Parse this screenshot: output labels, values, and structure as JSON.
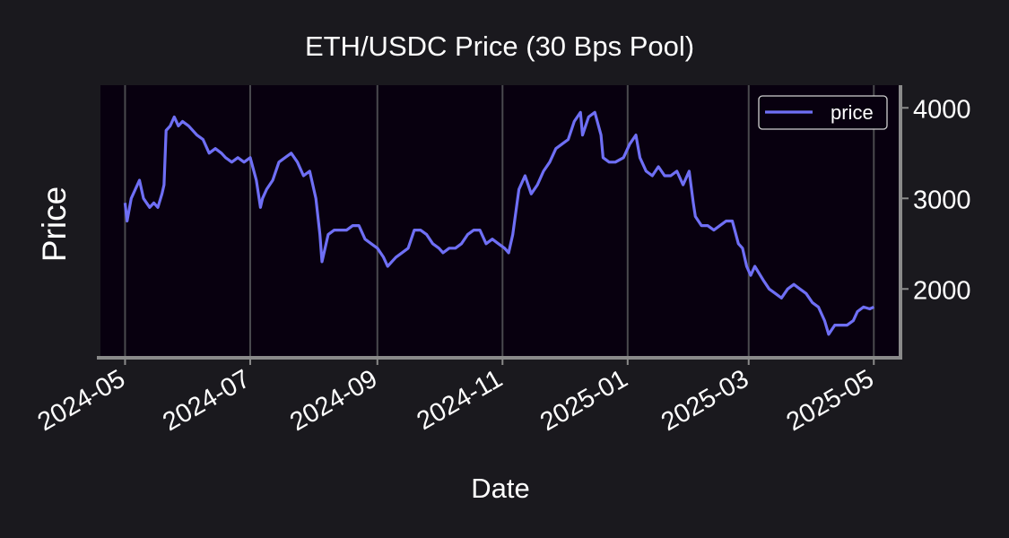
{
  "chart_data": {
    "type": "line",
    "title": "ETH/USDC Price (30 Bps Pool)",
    "xlabel": "Date",
    "ylabel": "Price",
    "xlim": [
      "2024-04-19",
      "2025-05-14"
    ],
    "ylim": [
      1250,
      4250
    ],
    "x_ticks": [
      "2024-05",
      "2024-07",
      "2024-09",
      "2024-11",
      "2025-01",
      "2025-03",
      "2025-05"
    ],
    "y_ticks": [
      2000,
      3000,
      4000
    ],
    "grid": "vertical",
    "legend": "top-right",
    "colors": {
      "line": "#6f6ff5",
      "plot_background": "#08000f",
      "figure_background": "#1a191e",
      "grid": "#4a4a4e",
      "axis_spine": "#8a8a8a"
    },
    "series": [
      {
        "name": "price",
        "x": [
          "2024-05-01",
          "2024-05-02",
          "2024-05-04",
          "2024-05-06",
          "2024-05-08",
          "2024-05-10",
          "2024-05-13",
          "2024-05-15",
          "2024-05-17",
          "2024-05-19",
          "2024-05-20",
          "2024-05-21",
          "2024-05-23",
          "2024-05-25",
          "2024-05-27",
          "2024-05-29",
          "2024-06-01",
          "2024-06-05",
          "2024-06-08",
          "2024-06-11",
          "2024-06-14",
          "2024-06-17",
          "2024-06-19",
          "2024-06-22",
          "2024-06-25",
          "2024-06-28",
          "2024-07-01",
          "2024-07-04",
          "2024-07-06",
          "2024-07-07",
          "2024-07-09",
          "2024-07-12",
          "2024-07-15",
          "2024-07-18",
          "2024-07-21",
          "2024-07-24",
          "2024-07-27",
          "2024-07-30",
          "2024-08-02",
          "2024-08-04",
          "2024-08-05",
          "2024-08-06",
          "2024-08-08",
          "2024-08-11",
          "2024-08-14",
          "2024-08-17",
          "2024-08-20",
          "2024-08-23",
          "2024-08-26",
          "2024-08-29",
          "2024-09-01",
          "2024-09-04",
          "2024-09-06",
          "2024-09-08",
          "2024-09-10",
          "2024-09-13",
          "2024-09-16",
          "2024-09-19",
          "2024-09-22",
          "2024-09-25",
          "2024-09-28",
          "2024-10-01",
          "2024-10-03",
          "2024-10-06",
          "2024-10-09",
          "2024-10-12",
          "2024-10-15",
          "2024-10-18",
          "2024-10-21",
          "2024-10-24",
          "2024-10-27",
          "2024-10-30",
          "2024-11-02",
          "2024-11-04",
          "2024-11-06",
          "2024-11-09",
          "2024-11-12",
          "2024-11-15",
          "2024-11-18",
          "2024-11-21",
          "2024-11-24",
          "2024-11-27",
          "2024-11-30",
          "2024-12-03",
          "2024-12-06",
          "2024-12-09",
          "2024-12-10",
          "2024-12-13",
          "2024-12-16",
          "2024-12-19",
          "2024-12-20",
          "2024-12-23",
          "2024-12-26",
          "2024-12-30",
          "2025-01-02",
          "2025-01-05",
          "2025-01-07",
          "2025-01-10",
          "2025-01-13",
          "2025-01-16",
          "2025-01-19",
          "2025-01-22",
          "2025-01-25",
          "2025-01-28",
          "2025-01-31",
          "2025-02-02",
          "2025-02-03",
          "2025-02-06",
          "2025-02-09",
          "2025-02-12",
          "2025-02-15",
          "2025-02-18",
          "2025-02-21",
          "2025-02-24",
          "2025-02-26",
          "2025-02-28",
          "2025-03-02",
          "2025-03-04",
          "2025-03-08",
          "2025-03-11",
          "2025-03-14",
          "2025-03-17",
          "2025-03-20",
          "2025-03-23",
          "2025-03-26",
          "2025-03-29",
          "2025-04-01",
          "2025-04-04",
          "2025-04-07",
          "2025-04-09",
          "2025-04-12",
          "2025-04-15",
          "2025-04-18",
          "2025-04-21",
          "2025-04-23",
          "2025-04-26",
          "2025-04-29",
          "2025-05-01"
        ],
        "y": [
          2950,
          2750,
          3000,
          3100,
          3200,
          3000,
          2900,
          2950,
          2900,
          3050,
          3150,
          3750,
          3800,
          3900,
          3800,
          3850,
          3800,
          3700,
          3650,
          3500,
          3550,
          3500,
          3450,
          3400,
          3450,
          3400,
          3450,
          3200,
          2900,
          3000,
          3100,
          3200,
          3400,
          3450,
          3500,
          3400,
          3250,
          3300,
          3000,
          2600,
          2300,
          2400,
          2600,
          2650,
          2650,
          2650,
          2700,
          2700,
          2550,
          2500,
          2450,
          2350,
          2250,
          2300,
          2350,
          2400,
          2450,
          2650,
          2650,
          2600,
          2500,
          2450,
          2400,
          2450,
          2450,
          2500,
          2600,
          2650,
          2650,
          2500,
          2550,
          2500,
          2450,
          2400,
          2600,
          3100,
          3250,
          3050,
          3150,
          3300,
          3400,
          3550,
          3600,
          3650,
          3850,
          3950,
          3700,
          3900,
          3950,
          3700,
          3450,
          3400,
          3400,
          3450,
          3600,
          3700,
          3450,
          3300,
          3250,
          3350,
          3250,
          3250,
          3300,
          3150,
          3300,
          2950,
          2800,
          2700,
          2700,
          2650,
          2700,
          2750,
          2750,
          2500,
          2450,
          2250,
          2150,
          2250,
          2100,
          2000,
          1950,
          1900,
          2000,
          2050,
          2000,
          1950,
          1850,
          1800,
          1650,
          1500,
          1600,
          1600,
          1600,
          1650,
          1750,
          1800,
          1780,
          1800
        ]
      }
    ]
  }
}
